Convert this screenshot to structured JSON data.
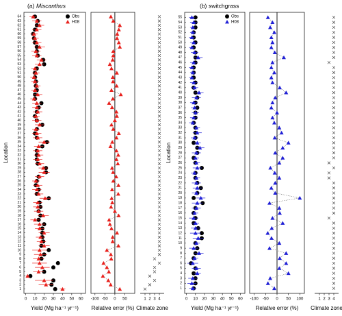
{
  "chart_data": [
    {
      "type": "dot",
      "panel_label": "(a)",
      "title": "Miscanthus",
      "ylabel": "Location",
      "ylim": [
        0,
        65
      ],
      "categories": [
        1,
        2,
        3,
        4,
        5,
        6,
        7,
        8,
        9,
        10,
        11,
        12,
        13,
        14,
        15,
        16,
        17,
        18,
        19,
        20,
        21,
        22,
        23,
        24,
        25,
        26,
        27,
        28,
        29,
        30,
        31,
        32,
        33,
        34,
        35,
        36,
        37,
        38,
        39,
        40,
        41,
        42,
        43,
        44,
        45,
        46,
        47,
        48,
        49,
        50,
        51,
        52,
        53,
        54,
        55,
        56,
        57,
        58,
        59,
        60,
        61,
        62,
        63,
        64
      ],
      "yield": {
        "xlabel": "Yield (Mg ha⁻¹ yr⁻¹)",
        "xlim": [
          -2,
          65
        ],
        "xticks": [
          0,
          10,
          20,
          30,
          40,
          50,
          60
        ],
        "legend": "upper right",
        "series": [
          {
            "name": "Obs",
            "color": "#000000",
            "marker": "circle",
            "values": [
              32,
              28,
              30,
              5,
              20,
              30,
              35,
              17,
              20,
              25,
              17,
              19,
              18,
              18,
              18,
              20,
              14,
              16,
              14,
              16,
              15,
              25,
              12,
              14,
              11,
              12,
              14,
              22,
              22,
              13,
              12,
              12,
              12,
              18,
              23,
              12,
              10,
              12,
              18,
              12,
              10,
              12,
              14,
              17,
              10,
              10,
              12,
              11,
              11,
              10,
              10,
              12,
              20,
              19,
              13,
              12,
              12,
              10,
              9,
              8,
              10,
              12,
              13,
              10
            ]
          },
          {
            "name": "H08",
            "color": "#e8201c",
            "marker": "triangle",
            "values": [
              40,
              22,
              20,
              2,
              14,
              18,
              15,
              14,
              16,
              15,
              20,
              17,
              16,
              20,
              15,
              15,
              10,
              19,
              14,
              13,
              13,
              21,
              14,
              12,
              13,
              11,
              15,
              20,
              19,
              15,
              13,
              14,
              13,
              14,
              20,
              13,
              12,
              11,
              15,
              12,
              11,
              13,
              12,
              12,
              9,
              13,
              10,
              12,
              10,
              9,
              11,
              10,
              15,
              17,
              12,
              11,
              15,
              12,
              10,
              9,
              12,
              15,
              12,
              8
            ],
            "errors": [
              3,
              8,
              10,
              2,
              6,
              8,
              8,
              6,
              7,
              8,
              6,
              5,
              5,
              6,
              5,
              6,
              5,
              6,
              5,
              5,
              5,
              6,
              5,
              5,
              5,
              4,
              5,
              6,
              5,
              5,
              5,
              5,
              5,
              5,
              6,
              5,
              5,
              4,
              5,
              5,
              4,
              5,
              5,
              5,
              4,
              5,
              4,
              4,
              4,
              4,
              4,
              4,
              5,
              5,
              5,
              5,
              6,
              5,
              4,
              4,
              5,
              5,
              5,
              4
            ]
          }
        ]
      },
      "relative_error": {
        "xlabel": "Relative error (%)",
        "xlim": [
          -120,
          100
        ],
        "xticks": [
          -100,
          -50,
          0,
          50
        ],
        "color": "#e8201c",
        "values": [
          25,
          -21,
          -33,
          -60,
          -30,
          -40,
          -57,
          -18,
          -20,
          -40,
          18,
          -11,
          -11,
          11,
          -17,
          -25,
          -29,
          19,
          0,
          -19,
          -13,
          -16,
          17,
          -14,
          18,
          -8,
          7,
          -9,
          -14,
          15,
          8,
          17,
          8,
          -22,
          -13,
          8,
          20,
          -8,
          -17,
          0,
          10,
          8,
          -14,
          -29,
          -10,
          30,
          -17,
          9,
          -9,
          -10,
          10,
          -17,
          -25,
          -11,
          -8,
          -8,
          25,
          20,
          11,
          12,
          20,
          25,
          -8,
          -20
        ]
      },
      "climate_zone": {
        "xlabel": "Climate zone",
        "xlim": [
          0,
          5
        ],
        "xticks": [
          1,
          2,
          3,
          4
        ],
        "values": [
          1,
          2,
          3,
          2,
          3,
          3,
          4,
          3,
          4,
          4,
          4,
          4,
          4,
          4,
          4,
          4,
          4,
          4,
          4,
          4,
          4,
          4,
          4,
          4,
          4,
          4,
          4,
          4,
          4,
          4,
          4,
          4,
          4,
          4,
          4,
          4,
          4,
          4,
          4,
          4,
          4,
          4,
          4,
          4,
          4,
          4,
          4,
          4,
          4,
          4,
          4,
          4,
          4,
          4,
          4,
          4,
          4,
          4,
          4,
          4,
          4,
          4,
          4,
          4
        ]
      }
    },
    {
      "type": "dot",
      "panel_label": "(b)",
      "title": "switchgrass",
      "ylabel": "Location",
      "ylim": [
        0,
        56
      ],
      "categories": [
        1,
        2,
        3,
        4,
        5,
        6,
        7,
        8,
        9,
        10,
        11,
        12,
        13,
        14,
        15,
        16,
        17,
        18,
        19,
        20,
        21,
        22,
        23,
        24,
        25,
        26,
        27,
        28,
        29,
        30,
        31,
        32,
        33,
        34,
        35,
        36,
        37,
        38,
        39,
        40,
        41,
        42,
        43,
        44,
        45,
        46,
        47,
        48,
        49,
        50,
        51,
        52,
        53,
        54,
        55
      ],
      "yield": {
        "xlabel": "Yield (Mg ha⁻¹ yr⁻¹)",
        "xlim": [
          -2,
          65
        ],
        "xticks": [
          0,
          10,
          20,
          30,
          40,
          50,
          60
        ],
        "legend": "upper right",
        "series": [
          {
            "name": "Obs",
            "color": "#000000",
            "marker": "circle",
            "values": [
              8,
              10,
              10,
              8,
              10,
              5,
              8,
              10,
              12,
              10,
              17,
              17,
              13,
              8,
              10,
              8,
              10,
              18,
              8,
              12,
              16,
              12,
              10,
              10,
              17,
              10,
              8,
              12,
              12,
              8,
              10,
              10,
              10,
              8,
              10,
              10,
              12,
              10,
              12,
              10,
              8,
              10,
              8,
              8,
              8,
              10,
              10,
              10,
              8,
              10,
              8,
              8,
              10,
              10,
              10
            ]
          },
          {
            "name": "H08",
            "color": "#1f1fd6",
            "marker": "triangle",
            "values": [
              7,
              6,
              7,
              12,
              11,
              7,
              9,
              14,
              8,
              11,
              13,
              10,
              10,
              10,
              8,
              9,
              11,
              12,
              16,
              11,
              12,
              11,
              11,
              9,
              12,
              11,
              10,
              11,
              15,
              12,
              9,
              12,
              11,
              7,
              8,
              10,
              9,
              8,
              11,
              14,
              9,
              8,
              6,
              7,
              6,
              8,
              13,
              9,
              6,
              8,
              6,
              7,
              7,
              8,
              6
            ],
            "errors": [
              4,
              5,
              5,
              4,
              5,
              6,
              4,
              5,
              5,
              4,
              6,
              6,
              5,
              4,
              5,
              4,
              5,
              6,
              5,
              5,
              5,
              5,
              4,
              4,
              5,
              4,
              4,
              5,
              5,
              4,
              4,
              5,
              4,
              4,
              4,
              4,
              4,
              4,
              5,
              5,
              4,
              4,
              3,
              3,
              3,
              4,
              5,
              4,
              3,
              4,
              3,
              3,
              3,
              4,
              3
            ]
          }
        ]
      },
      "relative_error": {
        "xlabel": "Relative error (%)",
        "xlim": [
          -120,
          120
        ],
        "xticks": [
          -100,
          -50,
          0,
          50,
          100
        ],
        "color": "#1f1fd6",
        "values": [
          -12,
          -40,
          -30,
          50,
          10,
          40,
          12,
          40,
          -33,
          10,
          -24,
          -41,
          -23,
          25,
          -20,
          12,
          10,
          -33,
          100,
          -8,
          -25,
          -8,
          10,
          -10,
          -29,
          10,
          25,
          -8,
          25,
          50,
          -10,
          20,
          10,
          -12,
          -20,
          0,
          -25,
          -20,
          -8,
          40,
          12,
          -20,
          -25,
          -12,
          -25,
          -20,
          30,
          -10,
          -25,
          -20,
          -25,
          -12,
          -30,
          -20,
          -40
        ]
      },
      "climate_zone": {
        "xlabel": "Climate zone",
        "xlim": [
          0,
          5
        ],
        "xticks": [
          1,
          2,
          3,
          4
        ],
        "values": [
          4,
          4,
          4,
          4,
          4,
          4,
          4,
          4,
          4,
          4,
          4,
          4,
          4,
          4,
          3,
          4,
          4,
          4,
          4,
          4,
          4,
          4,
          3,
          3,
          4,
          3,
          4,
          4,
          4,
          4,
          4,
          4,
          4,
          4,
          4,
          4,
          4,
          4,
          4,
          4,
          4,
          4,
          4,
          4,
          4,
          3,
          4,
          4,
          4,
          4,
          4,
          4,
          4,
          4,
          4
        ]
      }
    }
  ]
}
